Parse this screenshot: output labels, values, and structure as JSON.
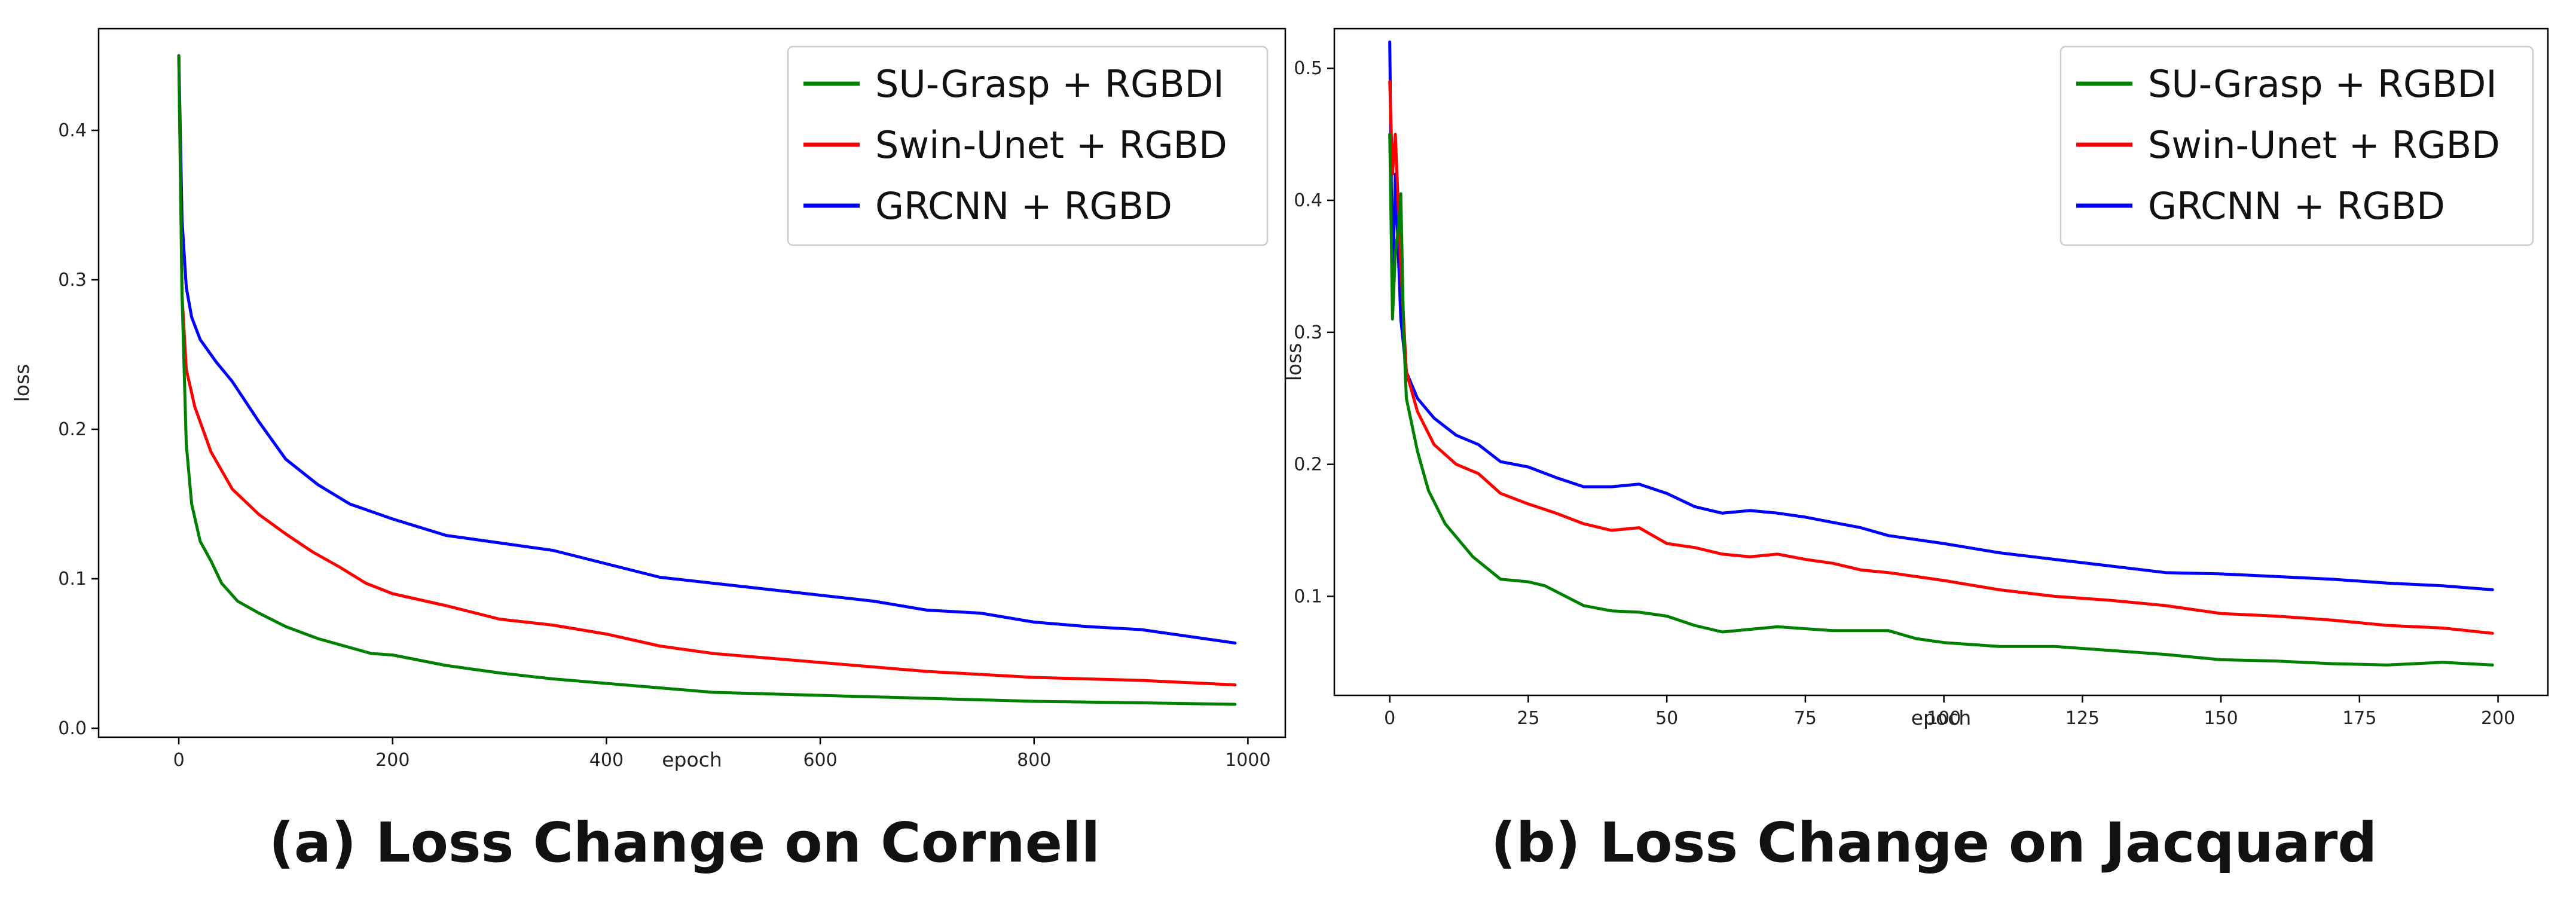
{
  "chart_data": [
    {
      "type": "line",
      "caption": "(a) Loss Change on Cornell",
      "xlabel": "epoch",
      "ylabel": "loss",
      "xlim": [
        -75,
        1035
      ],
      "ylim": [
        -0.006,
        0.468
      ],
      "xticks": [
        0,
        200,
        400,
        600,
        800,
        1000
      ],
      "xtick_labels": [
        "0",
        "200",
        "400",
        "600",
        "800",
        "1000"
      ],
      "yticks": [
        0.0,
        0.1,
        0.2,
        0.3,
        0.4
      ],
      "ytick_labels": [
        "0.0",
        "0.1",
        "0.2",
        "0.3",
        "0.4"
      ],
      "grid": false,
      "legend_position": "top-right",
      "series": [
        {
          "name": "SU-Grasp + RGBDI",
          "color": "#008000",
          "x": [
            0,
            3,
            7,
            12,
            20,
            30,
            40,
            55,
            75,
            100,
            130,
            160,
            180,
            200,
            250,
            300,
            350,
            400,
            450,
            500,
            550,
            600,
            700,
            800,
            900,
            988
          ],
          "y": [
            0.45,
            0.29,
            0.19,
            0.15,
            0.125,
            0.112,
            0.097,
            0.085,
            0.077,
            0.068,
            0.06,
            0.054,
            0.05,
            0.049,
            0.042,
            0.037,
            0.033,
            0.03,
            0.027,
            0.024,
            0.023,
            0.022,
            0.02,
            0.018,
            0.017,
            0.016
          ]
        },
        {
          "name": "Swin-Unet + RGBD",
          "color": "#ff0000",
          "x": [
            0,
            3,
            7,
            15,
            30,
            50,
            75,
            100,
            125,
            150,
            175,
            200,
            250,
            300,
            350,
            400,
            450,
            500,
            550,
            600,
            650,
            700,
            800,
            900,
            988
          ],
          "y": [
            0.45,
            0.29,
            0.24,
            0.215,
            0.185,
            0.16,
            0.143,
            0.13,
            0.118,
            0.108,
            0.097,
            0.09,
            0.082,
            0.073,
            0.069,
            0.063,
            0.055,
            0.05,
            0.047,
            0.044,
            0.041,
            0.038,
            0.034,
            0.032,
            0.029
          ]
        },
        {
          "name": "GRCNN + RGBD",
          "color": "#0000ff",
          "x": [
            0,
            3,
            7,
            12,
            20,
            35,
            50,
            75,
            100,
            130,
            160,
            200,
            250,
            300,
            350,
            400,
            450,
            500,
            550,
            600,
            650,
            700,
            750,
            800,
            850,
            900,
            988
          ],
          "y": [
            0.45,
            0.34,
            0.295,
            0.275,
            0.26,
            0.245,
            0.232,
            0.205,
            0.18,
            0.163,
            0.15,
            0.14,
            0.129,
            0.124,
            0.119,
            0.11,
            0.101,
            0.097,
            0.093,
            0.089,
            0.085,
            0.079,
            0.077,
            0.071,
            0.068,
            0.066,
            0.057
          ]
        }
      ]
    },
    {
      "type": "line",
      "caption": "(b) Loss Change on Jacquard",
      "xlabel": "epoch",
      "ylabel": "loss",
      "xlim": [
        -10,
        209
      ],
      "ylim": [
        0.025,
        0.53
      ],
      "xticks": [
        0,
        25,
        50,
        75,
        100,
        125,
        150,
        175,
        200
      ],
      "xtick_labels": [
        "0",
        "25",
        "50",
        "75",
        "100",
        "125",
        "150",
        "175",
        "200"
      ],
      "yticks": [
        0.1,
        0.2,
        0.3,
        0.4,
        0.5
      ],
      "ytick_labels": [
        "0.1",
        "0.2",
        "0.3",
        "0.4",
        "0.5"
      ],
      "grid": false,
      "legend_position": "top-right",
      "series": [
        {
          "name": "SU-Grasp + RGBDI",
          "color": "#008000",
          "x": [
            0,
            0.5,
            1,
            1.6,
            2,
            2.5,
            3,
            5,
            7,
            10,
            15,
            20,
            25,
            28,
            35,
            40,
            45,
            50,
            55,
            60,
            70,
            80,
            90,
            95,
            100,
            110,
            120,
            130,
            140,
            150,
            160,
            170,
            180,
            190,
            199
          ],
          "y": [
            0.45,
            0.31,
            0.36,
            0.38,
            0.405,
            0.3,
            0.25,
            0.21,
            0.18,
            0.155,
            0.13,
            0.113,
            0.111,
            0.108,
            0.093,
            0.089,
            0.088,
            0.085,
            0.078,
            0.073,
            0.077,
            0.074,
            0.074,
            0.068,
            0.065,
            0.062,
            0.062,
            0.059,
            0.056,
            0.052,
            0.051,
            0.049,
            0.048,
            0.05,
            0.048
          ]
        },
        {
          "name": "Swin-Unet + RGBD",
          "color": "#ff0000",
          "x": [
            0,
            0.5,
            1,
            2,
            3,
            5,
            8,
            12,
            16,
            20,
            25,
            30,
            35,
            40,
            45,
            50,
            55,
            60,
            65,
            70,
            75,
            80,
            85,
            90,
            100,
            110,
            120,
            130,
            140,
            150,
            160,
            170,
            180,
            190,
            199
          ],
          "y": [
            0.49,
            0.42,
            0.45,
            0.35,
            0.27,
            0.24,
            0.215,
            0.2,
            0.193,
            0.178,
            0.17,
            0.163,
            0.155,
            0.15,
            0.152,
            0.14,
            0.137,
            0.132,
            0.13,
            0.132,
            0.128,
            0.125,
            0.12,
            0.118,
            0.112,
            0.105,
            0.1,
            0.097,
            0.093,
            0.087,
            0.085,
            0.082,
            0.078,
            0.076,
            0.072
          ]
        },
        {
          "name": "GRCNN + RGBD",
          "color": "#0000ff",
          "x": [
            0,
            0.5,
            1,
            2,
            3,
            5,
            8,
            12,
            16,
            20,
            25,
            30,
            35,
            40,
            45,
            50,
            55,
            60,
            65,
            70,
            75,
            80,
            85,
            90,
            100,
            110,
            120,
            130,
            140,
            150,
            160,
            170,
            180,
            190,
            199
          ],
          "y": [
            0.52,
            0.33,
            0.42,
            0.31,
            0.27,
            0.25,
            0.235,
            0.222,
            0.215,
            0.202,
            0.198,
            0.19,
            0.183,
            0.183,
            0.185,
            0.178,
            0.168,
            0.163,
            0.165,
            0.163,
            0.16,
            0.156,
            0.152,
            0.146,
            0.14,
            0.133,
            0.128,
            0.123,
            0.118,
            0.117,
            0.115,
            0.113,
            0.11,
            0.108,
            0.105
          ]
        }
      ]
    }
  ]
}
